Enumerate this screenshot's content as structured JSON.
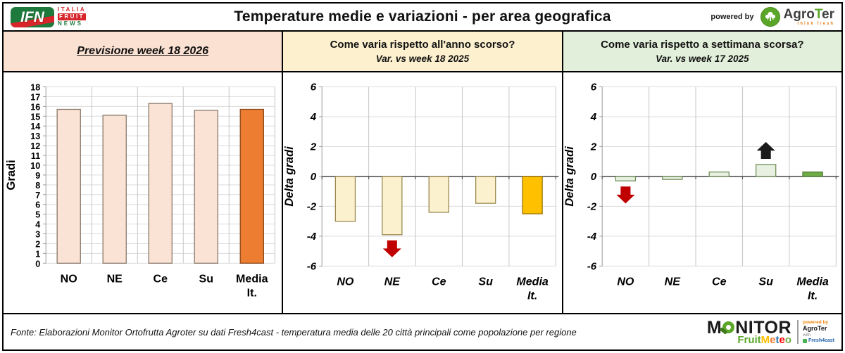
{
  "header": {
    "title": "Temperature medie e variazioni - per area geografica",
    "powered_by": "powered by",
    "ifn": {
      "acronym": "IFN",
      "word1": "ITALIA",
      "word2": "FRUIT",
      "word3": "NEWS"
    },
    "agroter": {
      "pre": "Agro",
      "t": "T",
      "post": "er",
      "tagline": "think fresh"
    }
  },
  "panel_colors": [
    "#FAE1D2",
    "#FCF0CE",
    "#E2EFDA"
  ],
  "chart_data": [
    {
      "type": "bar",
      "title": "Previsione week 18 2026",
      "ylabel": "Gradi",
      "ylim": [
        0,
        18
      ],
      "ytick_step": 1,
      "grid": true,
      "legend": "none",
      "categories": [
        "NO",
        "NE",
        "Ce",
        "Su",
        "Media It."
      ],
      "values": [
        15.7,
        15.1,
        16.3,
        15.6,
        15.7
      ],
      "highlight_index": 4,
      "colors": {
        "bar_fill": "#FAE3D4",
        "bar_border": "#8A7A6D",
        "highlight_fill": "#ED7D31",
        "highlight_border": "#8B4A1C"
      },
      "annotations": []
    },
    {
      "type": "bar",
      "title": "Come varia rispetto all'anno scorso?",
      "subtitle": "Var. vs week 18 2025",
      "ylabel": "Delta gradi",
      "ylim": [
        -6,
        6
      ],
      "ytick_step": 2,
      "grid": true,
      "legend": "none",
      "categories": [
        "NO",
        "NE",
        "Ce",
        "Su",
        "Media It."
      ],
      "values": [
        -3.0,
        -3.9,
        -2.4,
        -1.8,
        -2.5
      ],
      "highlight_index": 4,
      "colors": {
        "bar_fill": "#FCF1CE",
        "bar_border": "#99894F",
        "highlight_fill": "#FFC000",
        "highlight_border": "#9C7500"
      },
      "annotations": [
        {
          "category": "NE",
          "direction": "down",
          "color": "#C00000"
        }
      ]
    },
    {
      "type": "bar",
      "title": "Come varia rispetto a settimana scorsa?",
      "subtitle": "Var. vs week 17 2025",
      "ylabel": "Delta gradi",
      "ylim": [
        -6,
        6
      ],
      "ytick_step": 2,
      "grid": true,
      "legend": "none",
      "categories": [
        "NO",
        "NE",
        "Ce",
        "Su",
        "Media It."
      ],
      "values": [
        -0.3,
        -0.2,
        0.3,
        0.8,
        0.3
      ],
      "highlight_index": 4,
      "colors": {
        "bar_fill": "#E8F1E1",
        "bar_border": "#6F8F58",
        "highlight_fill": "#6FAC46",
        "highlight_border": "#4E7A33"
      },
      "annotations": [
        {
          "category": "NO",
          "direction": "down",
          "color": "#C00000"
        },
        {
          "category": "Su",
          "direction": "up",
          "color": "#1A1A1A"
        }
      ]
    }
  ],
  "footer": {
    "source": "Fonte: Elaborazioni Monitor Ortofrutta Agroter su dati Fresh4cast - temperatura media delle 20 città principali come popolazione per regione",
    "monitor": {
      "pre": "M",
      "post": "NITOR",
      "fruit": "Fruit",
      "meteo": [
        {
          "ch": "M",
          "color": "#FFC000"
        },
        {
          "ch": "e",
          "color": "#ED7D31"
        },
        {
          "ch": "t",
          "color": "#2E75B6"
        },
        {
          "ch": "e",
          "color": "#FF0000"
        },
        {
          "ch": "o",
          "color": "#70AD47"
        }
      ],
      "powered_by": "powered by",
      "agroter": "AgroTer",
      "with_text": "with",
      "fresh": "Fresh4cast"
    }
  }
}
